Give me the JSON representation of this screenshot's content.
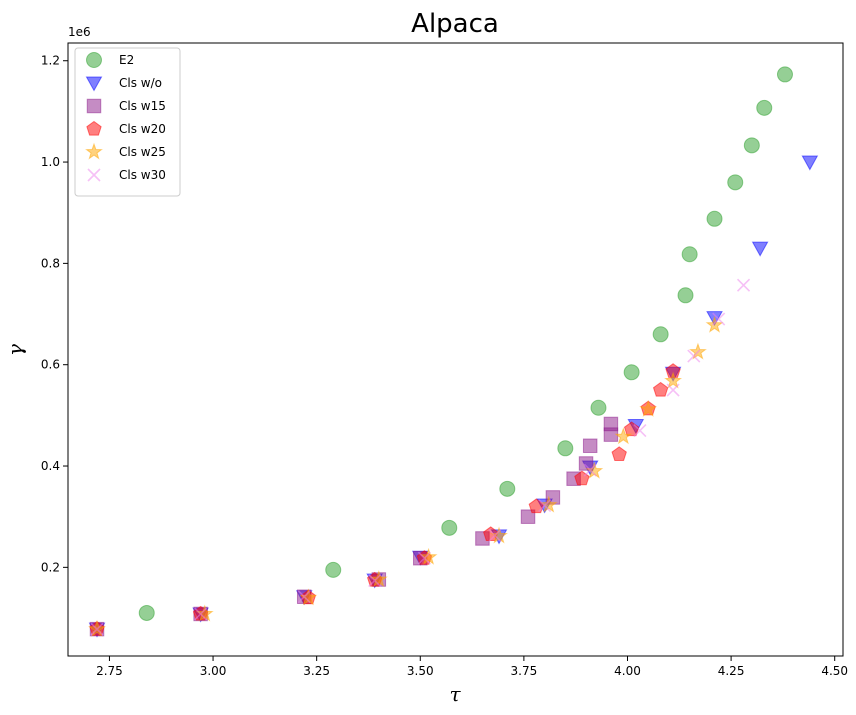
{
  "chart_data": {
    "type": "scatter",
    "title": "Alpaca",
    "xlabel": "τ",
    "ylabel": "γ",
    "y_offset_label": "1e6",
    "xlim": [
      2.65,
      4.52
    ],
    "ylim": [
      25000,
      1235000
    ],
    "xticks": [
      2.75,
      3.0,
      3.25,
      3.5,
      3.75,
      4.0,
      4.25,
      4.5
    ],
    "xtick_labels": [
      "2.75",
      "3.00",
      "3.25",
      "3.50",
      "3.75",
      "4.00",
      "4.25",
      "4.50"
    ],
    "yticks": [
      200000,
      400000,
      600000,
      800000,
      1000000,
      1200000
    ],
    "ytick_labels": [
      "0.2",
      "0.4",
      "0.6",
      "0.8",
      "1.0",
      "1.2"
    ],
    "grid": false,
    "legend_position": "top-left",
    "series": [
      {
        "name": "E2",
        "marker": "circle",
        "color": "#2ca02c",
        "x": [
          2.84,
          3.29,
          3.57,
          3.71,
          3.85,
          3.93,
          4.01,
          4.08,
          4.14,
          4.15,
          4.21,
          4.26,
          4.3,
          4.33,
          4.38
        ],
        "y": [
          110000,
          195000,
          278000,
          355000,
          435000,
          515000,
          585000,
          660000,
          737000,
          818000,
          888000,
          960000,
          1033000,
          1107000,
          1173000
        ]
      },
      {
        "name": "Cls w/o",
        "marker": "triangle-down",
        "color": "#0000ff",
        "x": [
          2.72,
          2.97,
          3.22,
          3.39,
          3.5,
          3.69,
          3.8,
          3.91,
          4.02,
          4.11,
          4.21,
          4.32,
          4.44
        ],
        "y": [
          78000,
          108000,
          142000,
          175000,
          220000,
          262000,
          323000,
          398000,
          480000,
          583000,
          693000,
          830000,
          1000000
        ]
      },
      {
        "name": "Cls w15",
        "marker": "square",
        "color": "#8b1a89",
        "x": [
          2.72,
          2.97,
          3.22,
          3.4,
          3.5,
          3.65,
          3.76,
          3.82,
          3.87,
          3.9,
          3.91,
          3.96,
          3.96
        ],
        "y": [
          78000,
          108000,
          142000,
          176000,
          218000,
          257000,
          300000,
          338000,
          375000,
          405000,
          440000,
          462000,
          483000
        ]
      },
      {
        "name": "Cls w20",
        "marker": "pentagon",
        "color": "#ff0000",
        "x": [
          2.72,
          2.97,
          3.23,
          3.39,
          3.51,
          3.67,
          3.78,
          3.89,
          3.98,
          4.01,
          4.05,
          4.08,
          4.11
        ],
        "y": [
          78000,
          108000,
          140000,
          175000,
          218000,
          265000,
          320000,
          375000,
          423000,
          472000,
          513000,
          550000,
          587000
        ]
      },
      {
        "name": "Cls w25",
        "marker": "star",
        "color": "#ffa500",
        "x": [
          2.72,
          2.98,
          3.23,
          3.4,
          3.52,
          3.69,
          3.81,
          3.92,
          3.99,
          4.05,
          4.11,
          4.17,
          4.21
        ],
        "y": [
          78000,
          108000,
          140000,
          176000,
          220000,
          262000,
          323000,
          390000,
          458000,
          512000,
          568000,
          625000,
          678000
        ]
      },
      {
        "name": "Cls w30",
        "marker": "x",
        "color": "#ee82ee",
        "x": [
          2.72,
          2.97,
          3.22,
          3.39,
          3.51,
          3.68,
          3.8,
          3.91,
          4.03,
          4.11,
          4.16,
          4.22,
          4.28
        ],
        "y": [
          78000,
          108000,
          142000,
          174000,
          218000,
          263000,
          322000,
          392000,
          470000,
          550000,
          617000,
          690000,
          757000
        ]
      }
    ]
  }
}
